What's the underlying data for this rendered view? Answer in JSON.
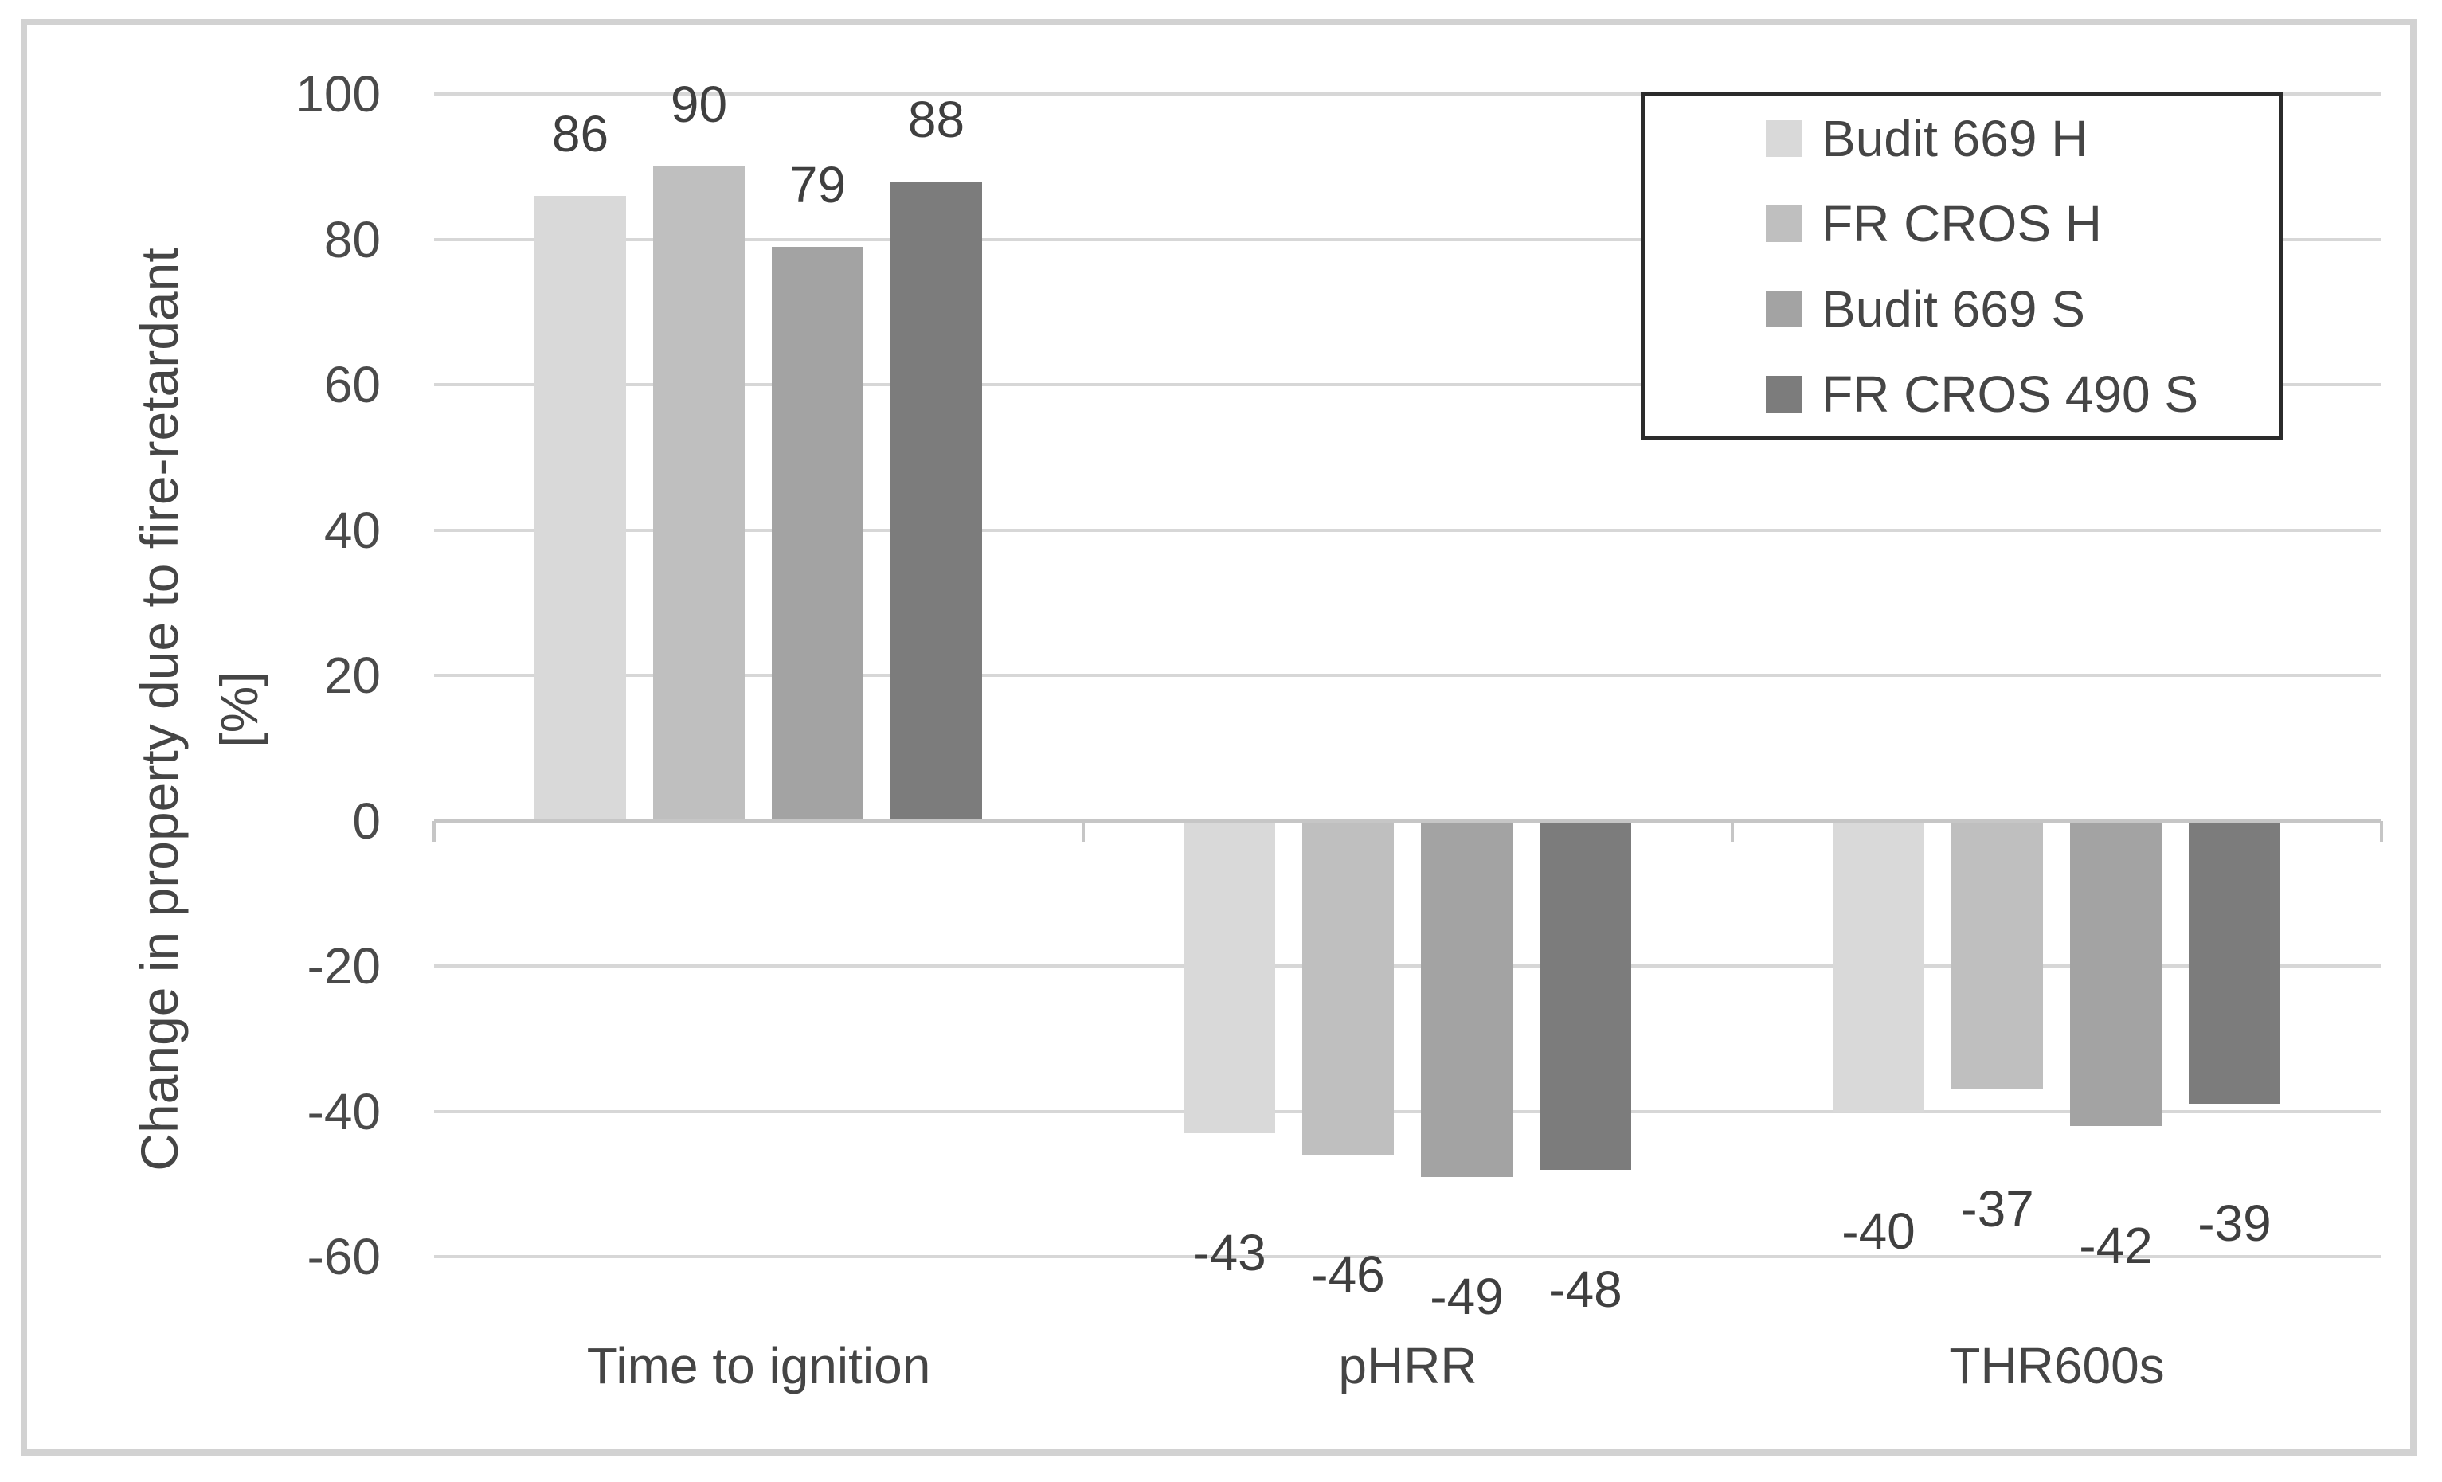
{
  "chart_data": {
    "type": "bar",
    "title": "",
    "categories": [
      "Time to ignition",
      "pHRR",
      "THR600s"
    ],
    "series": [
      {
        "name": "Budit 669 H",
        "color": "#d9d9d9",
        "values": [
          86,
          -43,
          -40
        ]
      },
      {
        "name": "FR CROS H",
        "color": "#bfbfbf",
        "values": [
          90,
          -46,
          -37
        ]
      },
      {
        "name": "Budit 669 S",
        "color": "#a3a3a3",
        "values": [
          79,
          -49,
          -42
        ]
      },
      {
        "name": "FR CROS 490 S",
        "color": "#7c7c7c",
        "values": [
          88,
          -48,
          -39
        ]
      }
    ],
    "ylabel_line1": "Change in property due to fire-retardant",
    "ylabel_line2": "[%]",
    "xlabel": "",
    "ylim": [
      -60,
      100
    ],
    "yticks": [
      100,
      80,
      60,
      40,
      20,
      0,
      -20,
      -40,
      -60
    ],
    "grid": "horizontal",
    "legend_position": "top-right",
    "data_labels": "outside-end"
  },
  "colors": {
    "background": "#ffffff",
    "frame_border": "#d2d2d2",
    "gridline": "#d7d7d7",
    "axis_line": "#c6c6c6",
    "legend_border": "#2b2b2b",
    "text": "#454545",
    "data_label_text": "#3f3f3f"
  }
}
